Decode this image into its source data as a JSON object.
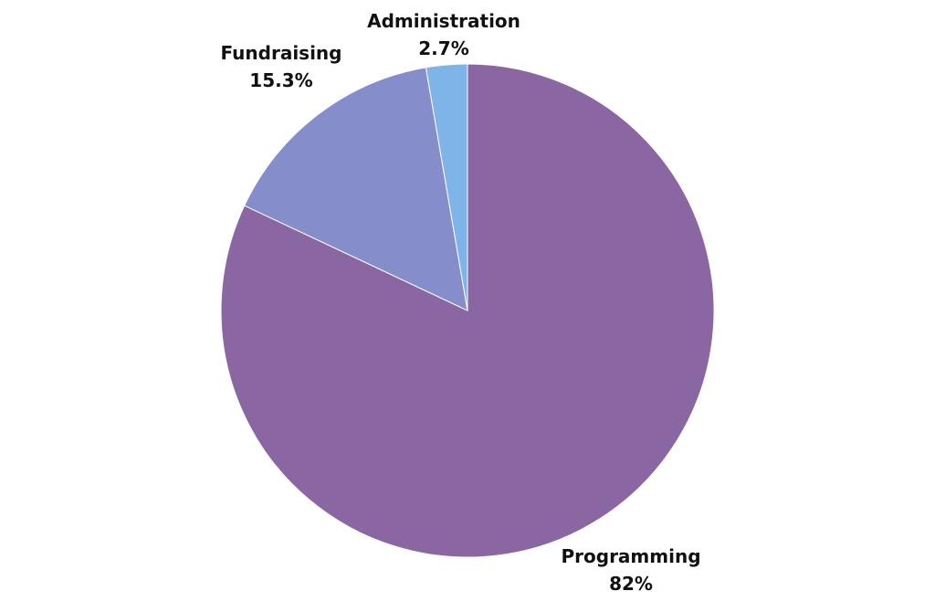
{
  "chart_data": {
    "type": "pie",
    "slices": [
      {
        "name": "Programming",
        "value": 82,
        "value_label": "82%",
        "color": "#8a66a2"
      },
      {
        "name": "Fundraising",
        "value": 15.3,
        "value_label": "15.3%",
        "color": "#858dca"
      },
      {
        "name": "Administration",
        "value": 2.7,
        "value_label": "2.7%",
        "color": "#7fb4e8"
      }
    ],
    "start_angle_deg": 0,
    "direction": "clockwise"
  }
}
